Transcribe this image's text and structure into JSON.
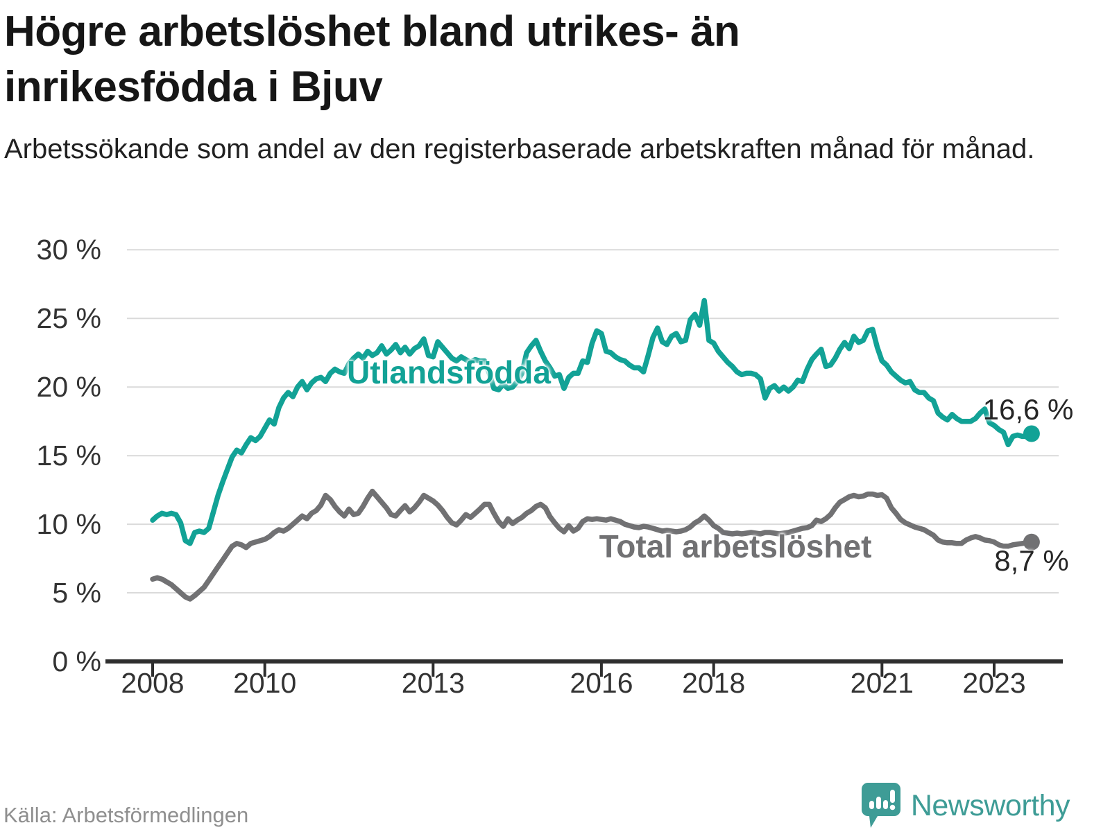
{
  "header": {
    "title_lines": [
      "Högre arbetslöshet bland utrikes- än",
      "inrikesfödda i Bjuv"
    ],
    "subtitle": "Arbetssökande som andel av den registerbaserade arbetskraften månad för månad."
  },
  "footer": {
    "source": "Källa: Arbetsförmedlingen",
    "brand": "Newsworthy"
  },
  "colors": {
    "foreign_born_line": "#12a296",
    "total_line": "#717173",
    "grid": "#dadada",
    "axis": "#2e2e2e",
    "tick_text": "#333333",
    "logo_teal": "#3e9c96"
  },
  "chart_data": {
    "type": "line",
    "title": "Högre arbetslöshet bland utrikes- än inrikesfödda i Bjuv",
    "subtitle": "Arbetssökande som andel av den registerbaserade arbetskraften månad för månad.",
    "x_start_year": 2008,
    "x_start_month": 1,
    "frequency": "monthly",
    "ylim": [
      0,
      30
    ],
    "grid": true,
    "y_ticks": [
      0,
      5,
      10,
      15,
      20,
      25,
      30
    ],
    "y_tick_labels": [
      "0 %",
      "5 %",
      "10 %",
      "15 %",
      "20 %",
      "25 %",
      "30 %"
    ],
    "x_ticks": [
      2008,
      2010,
      2013,
      2016,
      2018,
      2021,
      2023
    ],
    "x_tick_labels": [
      "2008",
      "2010",
      "2013",
      "2016",
      "2018",
      "2021",
      "2023"
    ],
    "series": [
      {
        "name": "Utlandsfödda",
        "color": "#12a296",
        "end_label": "16,6 %",
        "end_value": 16.6,
        "values": [
          10.3,
          10.6,
          10.8,
          10.7,
          10.8,
          10.7,
          10.1,
          8.8,
          8.6,
          9.4,
          9.5,
          9.4,
          9.7,
          10.9,
          12.1,
          13.1,
          14.0,
          14.9,
          15.4,
          15.2,
          15.8,
          16.3,
          16.1,
          16.4,
          17.0,
          17.6,
          17.3,
          18.5,
          19.2,
          19.6,
          19.3,
          20.0,
          20.4,
          19.8,
          20.3,
          20.6,
          20.7,
          20.4,
          21.0,
          21.3,
          21.1,
          21.0,
          21.7,
          22.1,
          22.4,
          22.1,
          22.6,
          22.3,
          22.5,
          23.0,
          22.4,
          22.7,
          23.1,
          22.5,
          22.9,
          22.4,
          22.8,
          23.0,
          23.5,
          22.3,
          22.2,
          23.3,
          22.9,
          22.5,
          22.1,
          21.9,
          22.2,
          22.0,
          21.8,
          22.0,
          21.9,
          21.9,
          21.0,
          19.9,
          19.8,
          20.2,
          19.9,
          20.0,
          20.4,
          21.0,
          22.5,
          23.0,
          23.4,
          22.6,
          21.9,
          21.4,
          20.8,
          20.9,
          19.9,
          20.7,
          21.0,
          21.0,
          21.9,
          21.8,
          23.2,
          24.1,
          23.9,
          22.6,
          22.5,
          22.2,
          22.0,
          21.9,
          21.6,
          21.4,
          21.4,
          21.1,
          22.3,
          23.6,
          24.3,
          23.3,
          23.1,
          23.7,
          23.9,
          23.3,
          23.4,
          24.9,
          25.3,
          24.5,
          26.3,
          23.4,
          23.2,
          22.6,
          22.2,
          21.8,
          21.5,
          21.1,
          20.9,
          21.0,
          21.0,
          20.9,
          20.6,
          19.2,
          19.9,
          20.1,
          19.7,
          20.0,
          19.7,
          20.0,
          20.5,
          20.4,
          21.3,
          22.0,
          22.4,
          22.75,
          21.5,
          21.6,
          22.1,
          22.75,
          23.25,
          22.8,
          23.7,
          23.25,
          23.4,
          24.1,
          24.2,
          22.9,
          21.9,
          21.6,
          21.1,
          20.8,
          20.5,
          20.3,
          20.4,
          19.8,
          19.6,
          19.6,
          19.2,
          19.0,
          18.1,
          17.8,
          17.6,
          18.0,
          17.7,
          17.5,
          17.5,
          17.5,
          17.7,
          18.1,
          18.4,
          17.4,
          17.2,
          16.9,
          16.7,
          15.8,
          16.4,
          16.5,
          16.4,
          16.4,
          16.6
        ]
      },
      {
        "name": "Total arbetslöshet",
        "color": "#717173",
        "end_label": "8,7 %",
        "end_value": 8.7,
        "values": [
          6.0,
          6.1,
          6.0,
          5.8,
          5.6,
          5.3,
          5.0,
          4.7,
          4.55,
          4.8,
          5.1,
          5.4,
          5.9,
          6.4,
          6.9,
          7.4,
          7.9,
          8.4,
          8.6,
          8.5,
          8.3,
          8.6,
          8.7,
          8.8,
          8.9,
          9.1,
          9.4,
          9.6,
          9.5,
          9.7,
          10.0,
          10.3,
          10.6,
          10.4,
          10.8,
          11.0,
          11.4,
          12.1,
          11.8,
          11.3,
          10.9,
          10.6,
          11.1,
          10.7,
          10.8,
          11.3,
          11.9,
          12.4,
          12.0,
          11.6,
          11.2,
          10.7,
          10.6,
          11.0,
          11.35,
          10.9,
          11.2,
          11.6,
          12.1,
          11.9,
          11.7,
          11.4,
          11.0,
          10.5,
          10.1,
          9.95,
          10.3,
          10.7,
          10.5,
          10.8,
          11.1,
          11.45,
          11.45,
          10.8,
          10.2,
          9.85,
          10.4,
          10.05,
          10.3,
          10.5,
          10.8,
          11.0,
          11.3,
          11.45,
          11.2,
          10.55,
          10.1,
          9.7,
          9.45,
          9.9,
          9.5,
          9.7,
          10.2,
          10.4,
          10.35,
          10.4,
          10.35,
          10.3,
          10.4,
          10.3,
          10.2,
          10.0,
          9.9,
          9.8,
          9.75,
          9.85,
          9.8,
          9.7,
          9.6,
          9.5,
          9.55,
          9.5,
          9.45,
          9.5,
          9.6,
          9.8,
          10.1,
          10.3,
          10.6,
          10.3,
          9.9,
          9.7,
          9.4,
          9.35,
          9.3,
          9.35,
          9.3,
          9.35,
          9.4,
          9.35,
          9.3,
          9.4,
          9.4,
          9.35,
          9.3,
          9.35,
          9.4,
          9.5,
          9.6,
          9.7,
          9.75,
          9.9,
          10.3,
          10.2,
          10.4,
          10.7,
          11.2,
          11.6,
          11.8,
          12.0,
          12.1,
          12.0,
          12.05,
          12.2,
          12.2,
          12.1,
          12.15,
          11.9,
          11.2,
          10.8,
          10.35,
          10.1,
          9.95,
          9.8,
          9.7,
          9.6,
          9.4,
          9.2,
          8.85,
          8.7,
          8.65,
          8.65,
          8.6,
          8.6,
          8.85,
          9.0,
          9.1,
          9.0,
          8.85,
          8.8,
          8.7,
          8.5,
          8.4,
          8.4,
          8.5,
          8.55,
          8.6,
          8.65,
          8.7
        ]
      }
    ],
    "legend_position": "inline-on-chart"
  }
}
